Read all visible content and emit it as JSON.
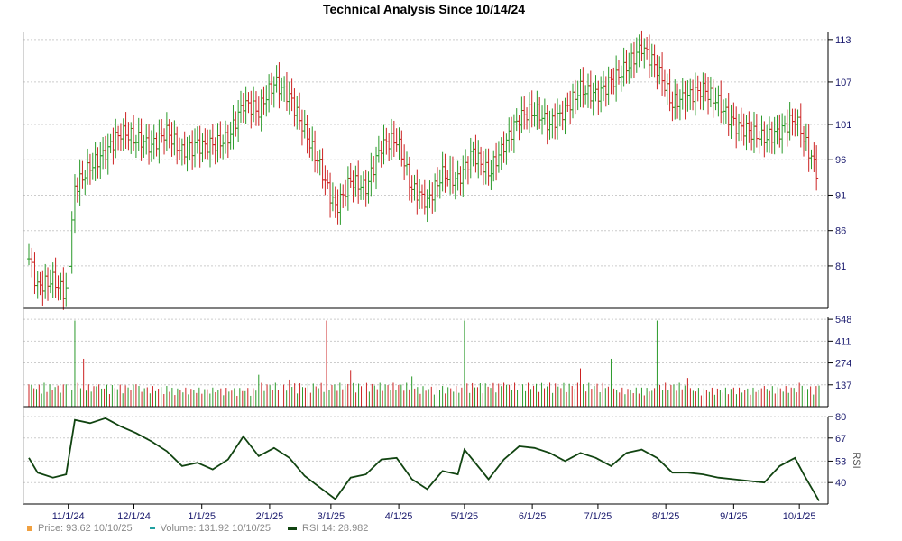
{
  "chart_data": {
    "type": "line",
    "title": "Technical Analysis Since 10/14/24",
    "x_tick_labels": [
      "11/1/24",
      "12/1/24",
      "1/1/25",
      "2/1/25",
      "3/1/25",
      "4/1/25",
      "5/1/25",
      "6/1/25",
      "7/1/25",
      "8/1/25",
      "9/1/25",
      "10/1/25"
    ],
    "x_range": [
      "10/14/24",
      "10/10/25"
    ],
    "panels": [
      {
        "name": "price",
        "chart_type": "ohlc",
        "ylim": [
          75,
          114
        ],
        "y_ticks": [
          81,
          86,
          91,
          96,
          101,
          107,
          113
        ],
        "grid": true,
        "points": [
          {
            "date": "10/14/24",
            "close": 82.0
          },
          {
            "date": "10/18/24",
            "close": 78.0
          },
          {
            "date": "10/25/24",
            "close": 79.0
          },
          {
            "date": "10/31/24",
            "close": 77.0
          },
          {
            "date": "11/4/24",
            "close": 92.0
          },
          {
            "date": "11/11/24",
            "close": 95.0
          },
          {
            "date": "11/18/24",
            "close": 97.0
          },
          {
            "date": "11/25/24",
            "close": 100.0
          },
          {
            "date": "12/2/24",
            "close": 99.0
          },
          {
            "date": "12/9/24",
            "close": 98.0
          },
          {
            "date": "12/16/24",
            "close": 100.0
          },
          {
            "date": "12/23/24",
            "close": 97.0
          },
          {
            "date": "12/30/24",
            "close": 98.0
          },
          {
            "date": "1/6/25",
            "close": 98.0
          },
          {
            "date": "1/13/25",
            "close": 99.0
          },
          {
            "date": "1/20/25",
            "close": 104.0
          },
          {
            "date": "1/27/25",
            "close": 103.0
          },
          {
            "date": "2/3/25",
            "close": 107.0
          },
          {
            "date": "2/10/25",
            "close": 105.0
          },
          {
            "date": "2/17/25",
            "close": 100.0
          },
          {
            "date": "2/24/25",
            "close": 95.0
          },
          {
            "date": "3/3/25",
            "close": 89.0
          },
          {
            "date": "3/10/25",
            "close": 93.0
          },
          {
            "date": "3/17/25",
            "close": 92.0
          },
          {
            "date": "3/24/25",
            "close": 98.0
          },
          {
            "date": "3/31/25",
            "close": 99.0
          },
          {
            "date": "4/7/25",
            "close": 92.0
          },
          {
            "date": "4/14/25",
            "close": 90.0
          },
          {
            "date": "4/21/25",
            "close": 94.0
          },
          {
            "date": "4/28/25",
            "close": 93.0
          },
          {
            "date": "5/5/25",
            "close": 97.0
          },
          {
            "date": "5/12/25",
            "close": 94.0
          },
          {
            "date": "5/19/25",
            "close": 98.0
          },
          {
            "date": "5/26/25",
            "close": 102.0
          },
          {
            "date": "6/2/25",
            "close": 103.0
          },
          {
            "date": "6/9/25",
            "close": 101.0
          },
          {
            "date": "6/16/25",
            "close": 103.0
          },
          {
            "date": "6/23/25",
            "close": 106.0
          },
          {
            "date": "6/30/25",
            "close": 105.0
          },
          {
            "date": "7/7/25",
            "close": 107.0
          },
          {
            "date": "7/14/25",
            "close": 109.0
          },
          {
            "date": "7/21/25",
            "close": 112.0
          },
          {
            "date": "7/28/25",
            "close": 109.0
          },
          {
            "date": "8/4/25",
            "close": 104.0
          },
          {
            "date": "8/11/25",
            "close": 105.0
          },
          {
            "date": "8/18/25",
            "close": 106.0
          },
          {
            "date": "8/25/25",
            "close": 104.0
          },
          {
            "date": "9/1/25",
            "close": 101.0
          },
          {
            "date": "9/8/25",
            "close": 100.0
          },
          {
            "date": "9/15/25",
            "close": 99.0
          },
          {
            "date": "9/22/25",
            "close": 100.0
          },
          {
            "date": "9/29/25",
            "close": 102.0
          },
          {
            "date": "10/3/25",
            "close": 99.0
          },
          {
            "date": "10/10/25",
            "close": 93.62
          }
        ]
      },
      {
        "name": "volume",
        "chart_type": "bar",
        "ylim": [
          0,
          560
        ],
        "y_ticks": [
          137,
          274,
          411,
          548
        ],
        "grid": true,
        "points": [
          {
            "date": "10/14/24",
            "value": 140
          },
          {
            "date": "10/21/24",
            "value": 150
          },
          {
            "date": "10/31/24",
            "value": 140
          },
          {
            "date": "11/4/24",
            "value": 540
          },
          {
            "date": "11/8/24",
            "value": 300
          },
          {
            "date": "11/15/24",
            "value": 140
          },
          {
            "date": "12/2/24",
            "value": 140
          },
          {
            "date": "12/16/24",
            "value": 130
          },
          {
            "date": "1/6/25",
            "value": 120
          },
          {
            "date": "1/27/25",
            "value": 200
          },
          {
            "date": "2/10/25",
            "value": 170
          },
          {
            "date": "2/27/25",
            "value": 540
          },
          {
            "date": "3/10/25",
            "value": 230
          },
          {
            "date": "4/7/25",
            "value": 190
          },
          {
            "date": "4/21/25",
            "value": 130
          },
          {
            "date": "5/1/25",
            "value": 540
          },
          {
            "date": "5/19/25",
            "value": 150
          },
          {
            "date": "6/9/25",
            "value": 150
          },
          {
            "date": "6/23/25",
            "value": 240
          },
          {
            "date": "7/7/25",
            "value": 300
          },
          {
            "date": "7/21/25",
            "value": 120
          },
          {
            "date": "7/28/25",
            "value": 540
          },
          {
            "date": "8/11/25",
            "value": 180
          },
          {
            "date": "9/1/25",
            "value": 120
          },
          {
            "date": "9/15/25",
            "value": 130
          },
          {
            "date": "10/1/25",
            "value": 150
          },
          {
            "date": "10/10/25",
            "value": 131.92
          }
        ]
      },
      {
        "name": "rsi",
        "chart_type": "line",
        "ylabel": "RSI",
        "ylim": [
          27,
          80
        ],
        "y_ticks": [
          40,
          53,
          67,
          80
        ],
        "grid": true,
        "series_color": "#114411",
        "points": [
          {
            "date": "10/14/24",
            "value": 55
          },
          {
            "date": "10/18/24",
            "value": 46
          },
          {
            "date": "10/25/24",
            "value": 43
          },
          {
            "date": "10/31/24",
            "value": 45
          },
          {
            "date": "11/4/24",
            "value": 78
          },
          {
            "date": "11/11/24",
            "value": 76
          },
          {
            "date": "11/18/24",
            "value": 79
          },
          {
            "date": "11/25/24",
            "value": 74
          },
          {
            "date": "12/2/24",
            "value": 70
          },
          {
            "date": "12/9/24",
            "value": 65
          },
          {
            "date": "12/16/24",
            "value": 59
          },
          {
            "date": "12/23/24",
            "value": 50
          },
          {
            "date": "12/30/24",
            "value": 52
          },
          {
            "date": "1/6/25",
            "value": 48
          },
          {
            "date": "1/13/25",
            "value": 54
          },
          {
            "date": "1/20/25",
            "value": 68
          },
          {
            "date": "1/27/25",
            "value": 56
          },
          {
            "date": "2/3/25",
            "value": 61
          },
          {
            "date": "2/10/25",
            "value": 55
          },
          {
            "date": "2/17/25",
            "value": 44
          },
          {
            "date": "2/24/25",
            "value": 37
          },
          {
            "date": "3/3/25",
            "value": 30
          },
          {
            "date": "3/10/25",
            "value": 43
          },
          {
            "date": "3/17/25",
            "value": 45
          },
          {
            "date": "3/24/25",
            "value": 54
          },
          {
            "date": "3/31/25",
            "value": 55
          },
          {
            "date": "4/7/25",
            "value": 42
          },
          {
            "date": "4/14/25",
            "value": 36
          },
          {
            "date": "4/21/25",
            "value": 47
          },
          {
            "date": "4/28/25",
            "value": 45
          },
          {
            "date": "5/1/25",
            "value": 60
          },
          {
            "date": "5/12/25",
            "value": 42
          },
          {
            "date": "5/19/25",
            "value": 54
          },
          {
            "date": "5/26/25",
            "value": 62
          },
          {
            "date": "6/2/25",
            "value": 61
          },
          {
            "date": "6/9/25",
            "value": 58
          },
          {
            "date": "6/16/25",
            "value": 53
          },
          {
            "date": "6/23/25",
            "value": 58
          },
          {
            "date": "6/30/25",
            "value": 55
          },
          {
            "date": "7/7/25",
            "value": 50
          },
          {
            "date": "7/14/25",
            "value": 58
          },
          {
            "date": "7/21/25",
            "value": 60
          },
          {
            "date": "7/28/25",
            "value": 55
          },
          {
            "date": "8/4/25",
            "value": 46
          },
          {
            "date": "8/11/25",
            "value": 46
          },
          {
            "date": "8/18/25",
            "value": 45
          },
          {
            "date": "8/25/25",
            "value": 43
          },
          {
            "date": "9/1/25",
            "value": 42
          },
          {
            "date": "9/8/25",
            "value": 41
          },
          {
            "date": "9/15/25",
            "value": 40
          },
          {
            "date": "9/22/25",
            "value": 50
          },
          {
            "date": "9/29/25",
            "value": 55
          },
          {
            "date": "10/3/25",
            "value": 45
          },
          {
            "date": "10/10/25",
            "value": 28.982
          }
        ]
      }
    ],
    "legend_position": "bottom-left",
    "legend": [
      {
        "label": "Price: 93.62  10/10/25",
        "color": "#f0a040",
        "shape": "square"
      },
      {
        "label": "Volume: 131.92  10/10/25",
        "color": "#20a0a0",
        "shape": "dash"
      },
      {
        "label": "RSI 14: 28.982",
        "color": "#114411",
        "shape": "line"
      }
    ],
    "colors": {
      "up": "#2a9a2a",
      "down": "#cc2222",
      "grid": "#cccccc",
      "axis": "#000000",
      "tick_text": "#1a1a6e"
    }
  }
}
